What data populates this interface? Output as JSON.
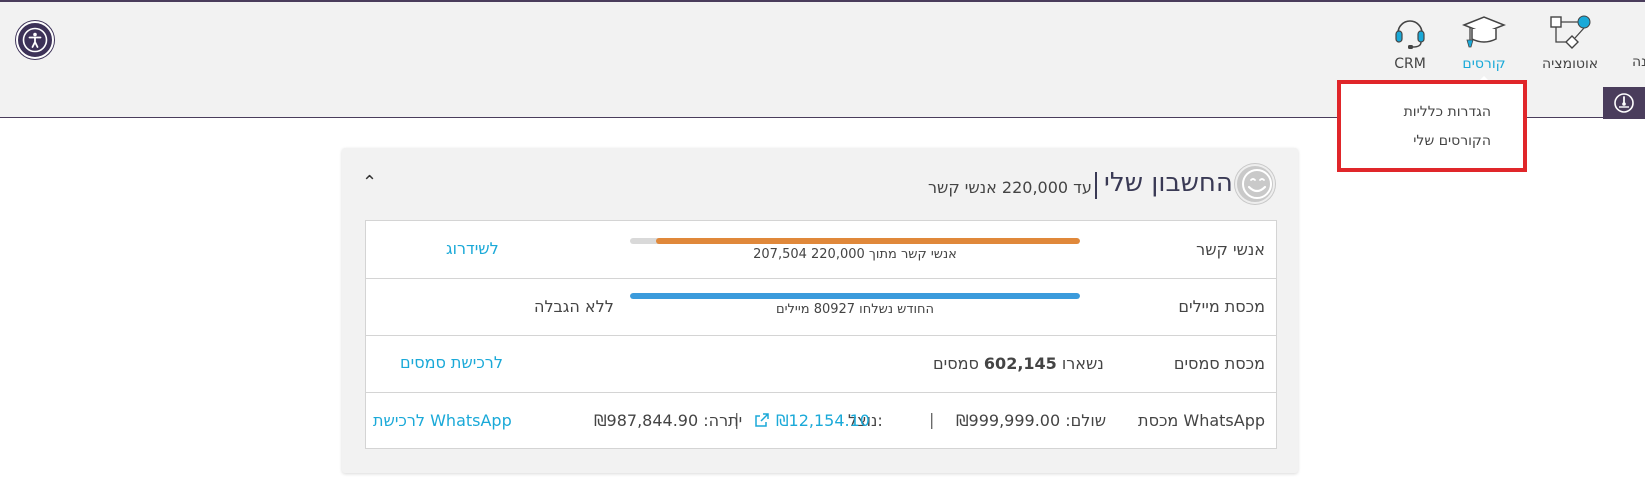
{
  "header": {
    "nav": [
      {
        "label": "CRM",
        "icon": "headset-icon"
      },
      {
        "label": "קורסים",
        "icon": "graduation-cap-icon",
        "active": true
      },
      {
        "label": "אוטומציה",
        "icon": "flow-icon"
      }
    ],
    "edge_label": "נה"
  },
  "dropdown": {
    "items": [
      "הגדרות כלליות",
      "הקורסים שלי"
    ],
    "highlight_color": "#e0262a"
  },
  "account": {
    "title": "החשבון שלי",
    "subtitle": "עד 220,000 אנשי קשר",
    "rows": {
      "contacts": {
        "label": "אנשי קשר",
        "bar_text": "207,504 אנשי קשר מתוך 220,000",
        "progress": 0.943,
        "bar_color": "#e0883a",
        "link": "לשידרוג"
      },
      "mails": {
        "label": "מכסת מיילים",
        "bar_text": "החודש נשלחו 80927 מיילים",
        "progress": 1.0,
        "bar_color": "#3b9bdc",
        "limit_text": "ללא הגבלה"
      },
      "sms": {
        "label": "מכסת סמסים",
        "prefix": "נשארו",
        "count": "602,145",
        "suffix": "סמסים",
        "link": "לרכישת סמסים"
      },
      "whatsapp": {
        "label": "מכסת WhatsApp",
        "paid": "שולם: ₪999,999.00",
        "used_label": "נוצל:",
        "used_value": "₪12,154.10",
        "balance": "יתרה: ₪987,844.90",
        "link": "לרכישת WhatsApp"
      }
    }
  },
  "colors": {
    "accent": "#1aa9d8",
    "header_dark": "#4a3d5c"
  }
}
